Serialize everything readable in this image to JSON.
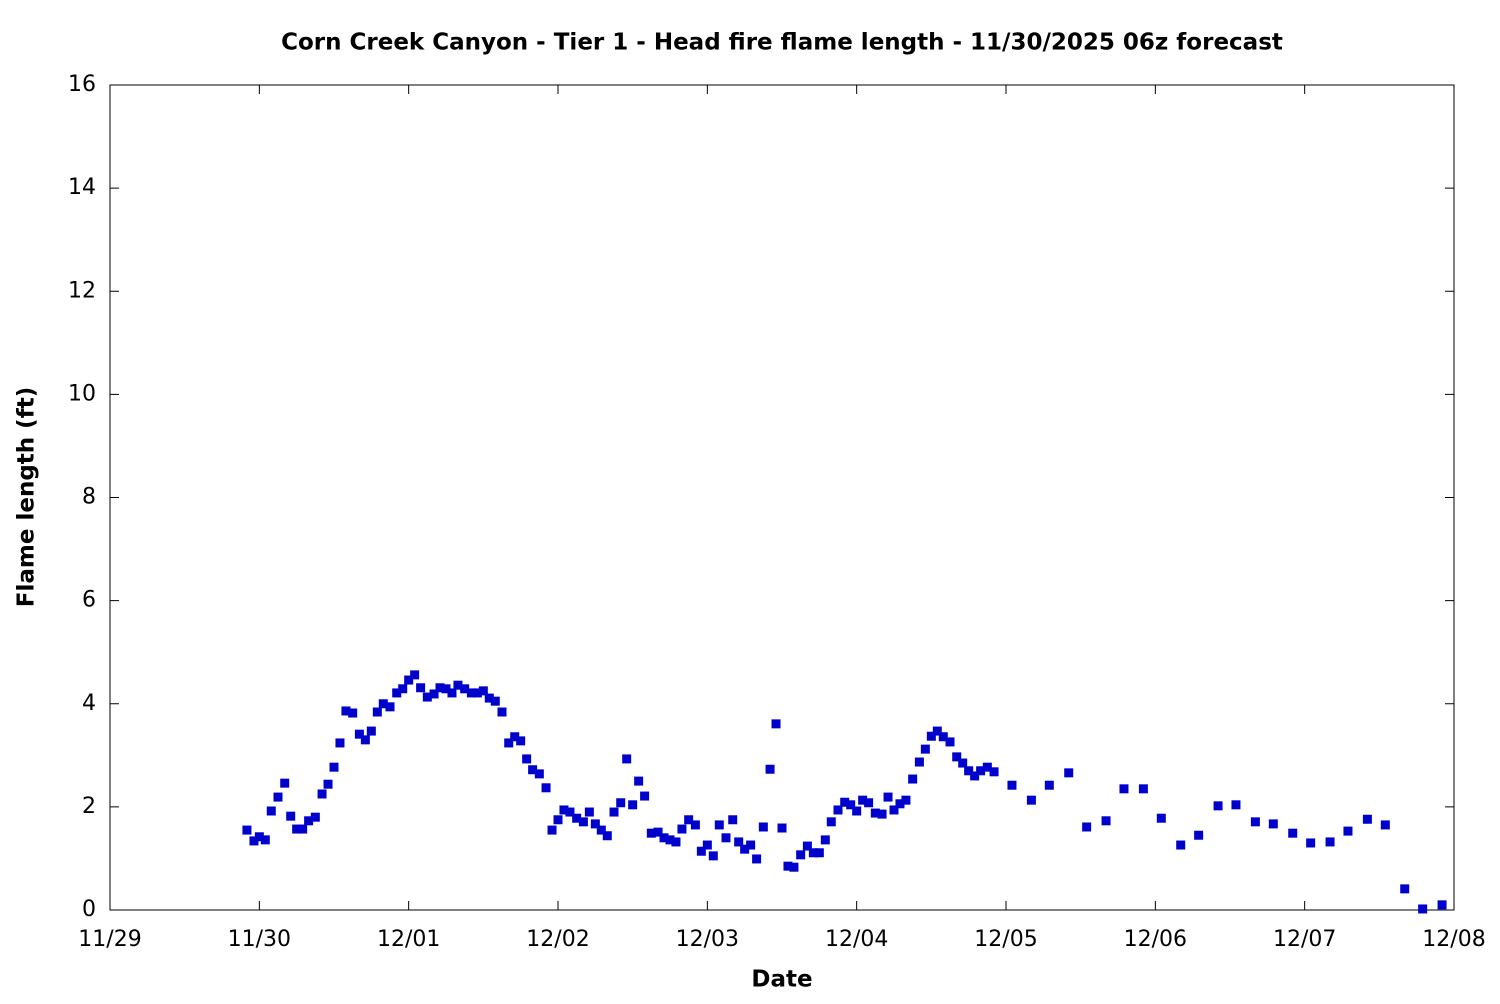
{
  "chart_data": {
    "type": "scatter",
    "title": "Corn Creek Canyon - Tier 1 - Head fire flame length - 11/30/2025 06z forecast",
    "x_label": "Date",
    "y_label": "Flame length (ft)",
    "xlim": [
      0,
      9
    ],
    "xticks": [
      {
        "value": 0,
        "label": "11/29"
      },
      {
        "value": 1,
        "label": "11/30"
      },
      {
        "value": 2,
        "label": "12/01"
      },
      {
        "value": 3,
        "label": "12/02"
      },
      {
        "value": 4,
        "label": "12/03"
      },
      {
        "value": 5,
        "label": "12/04"
      },
      {
        "value": 6,
        "label": "12/05"
      },
      {
        "value": 7,
        "label": "12/06"
      },
      {
        "value": 8,
        "label": "12/07"
      },
      {
        "value": 9,
        "label": "12/08"
      }
    ],
    "ylim": [
      0,
      16
    ],
    "yticks": [
      0,
      2,
      4,
      6,
      8,
      10,
      12,
      14,
      16
    ],
    "grid": false,
    "series": [
      {
        "color": "#0000cc",
        "x": [
          0.917,
          0.964,
          1.0,
          1.04,
          1.08,
          1.125,
          1.17,
          1.21,
          1.25,
          1.29,
          1.33,
          1.375,
          1.42,
          1.46,
          1.5,
          1.54,
          1.58,
          1.625,
          1.67,
          1.71,
          1.75,
          1.79,
          1.83,
          1.875,
          1.92,
          1.96,
          2.0,
          2.04,
          2.08,
          2.125,
          2.17,
          2.21,
          2.25,
          2.29,
          2.33,
          2.375,
          2.42,
          2.46,
          2.5,
          2.54,
          2.58,
          2.625,
          2.67,
          2.71,
          2.75,
          2.79,
          2.83,
          2.875,
          2.92,
          2.96,
          3.0,
          3.04,
          3.08,
          3.125,
          3.17,
          3.21,
          3.25,
          3.29,
          3.33,
          3.375,
          3.42,
          3.46,
          3.5,
          3.54,
          3.58,
          3.625,
          3.67,
          3.71,
          3.75,
          3.79,
          3.83,
          3.875,
          3.92,
          3.96,
          4.0,
          4.04,
          4.08,
          4.125,
          4.17,
          4.21,
          4.25,
          4.29,
          4.33,
          4.375,
          4.42,
          4.46,
          4.5,
          4.54,
          4.58,
          4.625,
          4.67,
          4.71,
          4.75,
          4.79,
          4.83,
          4.875,
          4.92,
          4.96,
          5.0,
          5.04,
          5.08,
          5.125,
          5.17,
          5.21,
          5.25,
          5.29,
          5.33,
          5.375,
          5.42,
          5.46,
          5.5,
          5.54,
          5.58,
          5.625,
          5.67,
          5.71,
          5.75,
          5.79,
          5.83,
          5.875,
          5.92,
          6.04,
          6.17,
          6.29,
          6.42,
          6.54,
          6.67,
          6.79,
          6.92,
          7.04,
          7.17,
          7.29,
          7.42,
          7.54,
          7.67,
          7.79,
          7.92,
          8.04,
          8.17,
          8.29,
          8.42,
          8.54,
          8.67,
          8.79,
          8.92
        ],
        "values": [
          1.55,
          1.34,
          1.42,
          1.36,
          1.92,
          2.19,
          2.46,
          1.82,
          1.57,
          1.57,
          1.73,
          1.8,
          2.25,
          2.44,
          2.77,
          3.24,
          3.86,
          3.82,
          3.41,
          3.3,
          3.47,
          3.84,
          4.0,
          3.94,
          4.21,
          4.29,
          4.46,
          4.56,
          4.31,
          4.13,
          4.19,
          4.31,
          4.29,
          4.21,
          4.36,
          4.29,
          4.21,
          4.21,
          4.25,
          4.11,
          4.05,
          3.84,
          3.24,
          3.36,
          3.28,
          2.93,
          2.72,
          2.64,
          2.37,
          1.55,
          1.75,
          1.94,
          1.9,
          1.78,
          1.71,
          1.9,
          1.67,
          1.55,
          1.44,
          1.9,
          2.08,
          2.93,
          2.04,
          2.5,
          2.21,
          1.49,
          1.51,
          1.4,
          1.36,
          1.32,
          1.57,
          1.75,
          1.65,
          1.14,
          1.26,
          1.05,
          1.65,
          1.4,
          1.75,
          1.32,
          1.18,
          1.26,
          0.99,
          1.61,
          2.73,
          3.61,
          1.59,
          0.85,
          0.83,
          1.07,
          1.24,
          1.11,
          1.11,
          1.36,
          1.71,
          1.94,
          2.09,
          2.04,
          1.92,
          2.13,
          2.08,
          1.88,
          1.86,
          2.19,
          1.94,
          2.06,
          2.13,
          2.54,
          2.87,
          3.12,
          3.37,
          3.47,
          3.36,
          3.26,
          2.97,
          2.85,
          2.7,
          2.6,
          2.7,
          2.77,
          2.68,
          2.42,
          2.13,
          2.42,
          2.66,
          1.61,
          1.73,
          2.35,
          2.35,
          1.78,
          1.26,
          1.45,
          2.02,
          2.04,
          1.71,
          1.67,
          1.49,
          1.3,
          1.32,
          1.53,
          1.76,
          1.65,
          0.41,
          0.02,
          0.1
        ]
      }
    ]
  }
}
